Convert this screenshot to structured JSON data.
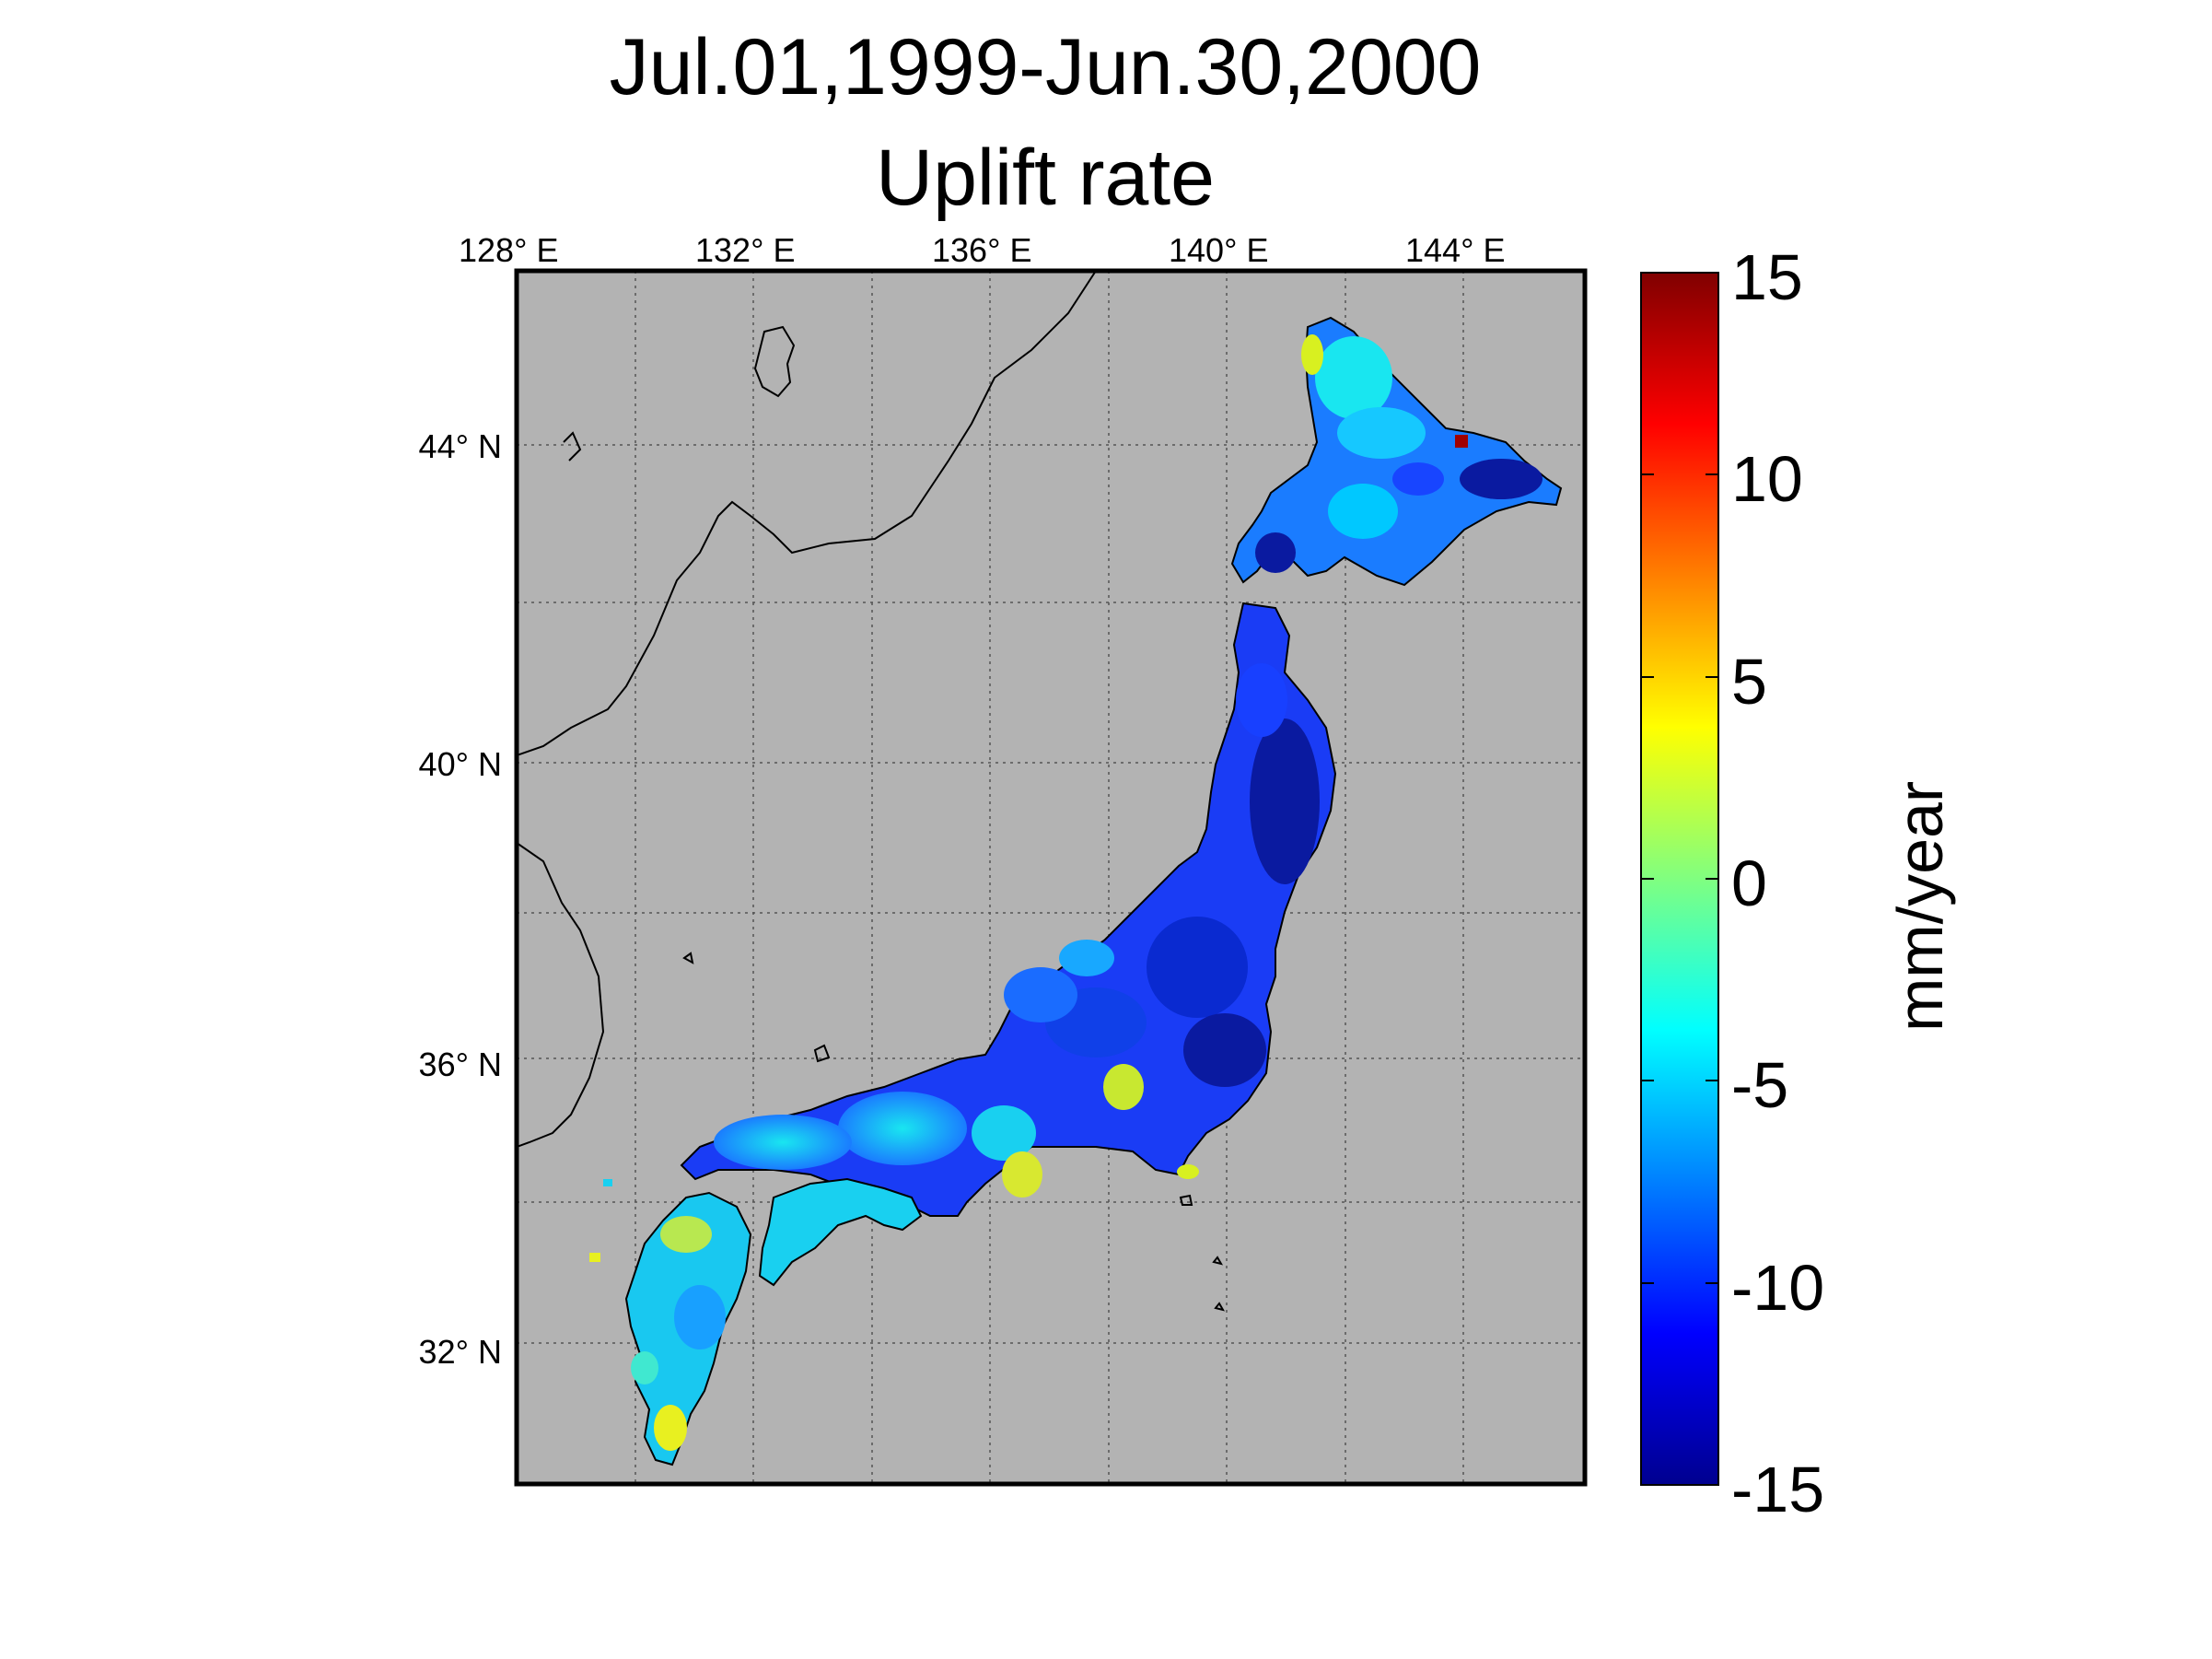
{
  "title": {
    "line1": "Jul.01,1999-Jun.30,2000",
    "line2": "Uplift rate"
  },
  "map": {
    "region": "Japan",
    "background_color": "#b3b3b3",
    "coastline_color": "#000000",
    "grid": "dotted",
    "lon_ticks": [
      {
        "value": 128,
        "label": "128° E"
      },
      {
        "value": 132,
        "label": "132° E"
      },
      {
        "value": 136,
        "label": "136° E"
      },
      {
        "value": 140,
        "label": "140° E"
      },
      {
        "value": 144,
        "label": "144° E"
      }
    ],
    "lat_ticks": [
      {
        "value": 44,
        "label": "44° N"
      },
      {
        "value": 40,
        "label": "40° N"
      },
      {
        "value": 36,
        "label": "36° N"
      },
      {
        "value": 32,
        "label": "32° N"
      }
    ]
  },
  "colorbar": {
    "label": "mm/year",
    "range": [
      -15,
      15
    ],
    "colormap": "jet",
    "ticks": [
      "15",
      "10",
      "5",
      "0",
      "-5",
      "-10",
      "-15"
    ]
  }
}
